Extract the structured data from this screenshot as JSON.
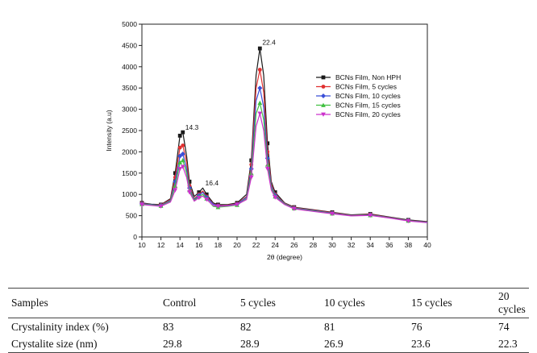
{
  "chart_data": {
    "type": "line",
    "title": "",
    "xlabel": "2θ (degree)",
    "ylabel": "Intensity (a.u)",
    "xlim": [
      10,
      40
    ],
    "ylim": [
      0,
      5000
    ],
    "xticks": [
      10,
      12,
      14,
      16,
      18,
      20,
      22,
      24,
      26,
      28,
      30,
      32,
      34,
      36,
      38,
      40
    ],
    "yticks": [
      0,
      500,
      1000,
      1500,
      2000,
      2500,
      3000,
      3500,
      4000,
      4500,
      5000
    ],
    "x": [
      10,
      11,
      12,
      13,
      13.5,
      14,
      14.3,
      14.7,
      15,
      15.5,
      16,
      16.4,
      16.8,
      17.5,
      18,
      19,
      20,
      21,
      21.5,
      22,
      22.4,
      22.8,
      23.2,
      23.6,
      24,
      25,
      26,
      28,
      30,
      32,
      34,
      36,
      38,
      40
    ],
    "legend_position": "right",
    "annotations": [
      {
        "text": "14.3",
        "x": 14.3,
        "y": 2480
      },
      {
        "text": "16.4",
        "x": 16.4,
        "y": 1170
      },
      {
        "text": "22.4",
        "x": 22.4,
        "y": 4480
      }
    ],
    "series": [
      {
        "name": "BCNs Film, Non HPH",
        "color": "#1a1a1a",
        "marker": "square",
        "values": [
          800,
          770,
          760,
          900,
          1500,
          2380,
          2460,
          1900,
          1300,
          950,
          1050,
          1150,
          1000,
          800,
          760,
          760,
          800,
          1000,
          1800,
          3800,
          4430,
          3800,
          2200,
          1300,
          1050,
          800,
          700,
          640,
          580,
          520,
          540,
          470,
          400,
          360
        ]
      },
      {
        "name": "BCNs Film, 5 cycles",
        "color": "#e03030",
        "marker": "circle",
        "values": [
          790,
          760,
          750,
          880,
          1400,
          2100,
          2150,
          1750,
          1200,
          900,
          1000,
          1080,
          950,
          780,
          740,
          750,
          780,
          950,
          1700,
          3500,
          3930,
          3400,
          2000,
          1250,
          1000,
          790,
          690,
          630,
          570,
          510,
          530,
          460,
          390,
          350
        ]
      },
      {
        "name": "BCNs Film, 10 cycles",
        "color": "#3a4fd8",
        "marker": "diamond",
        "values": [
          780,
          760,
          740,
          860,
          1300,
          1900,
          1950,
          1600,
          1150,
          880,
          980,
          1050,
          930,
          770,
          730,
          740,
          770,
          930,
          1600,
          3200,
          3500,
          3050,
          1850,
          1200,
          980,
          780,
          680,
          620,
          560,
          505,
          520,
          455,
          385,
          345
        ]
      },
      {
        "name": "BCNs Film, 15 cycles",
        "color": "#40c040",
        "marker": "triangle-up",
        "values": [
          770,
          750,
          730,
          840,
          1200,
          1750,
          1800,
          1500,
          1100,
          860,
          950,
          1000,
          900,
          720,
          700,
          720,
          750,
          900,
          1500,
          2900,
          3150,
          2750,
          1700,
          1150,
          950,
          770,
          670,
          610,
          550,
          500,
          510,
          450,
          380,
          340
        ]
      },
      {
        "name": "BCNs Film, 20 cycles",
        "color": "#cc30cc",
        "marker": "triangle-down",
        "values": [
          760,
          740,
          720,
          820,
          1100,
          1600,
          1650,
          1400,
          1050,
          840,
          920,
          960,
          880,
          740,
          720,
          730,
          760,
          880,
          1400,
          2600,
          2900,
          2500,
          1600,
          1100,
          930,
          760,
          660,
          600,
          545,
          495,
          505,
          445,
          375,
          335
        ]
      }
    ]
  },
  "table": {
    "headers": [
      "Samples",
      "Control",
      "5 cycles",
      "10 cycles",
      "15 cycles",
      "20 cycles"
    ],
    "rows": [
      [
        "Crystalinity index (%)",
        "83",
        "82",
        "81",
        "76",
        "74"
      ],
      [
        "Crystalite size (nm)",
        "29.8",
        "28.9",
        "26.9",
        "23.6",
        "22.3"
      ]
    ]
  }
}
